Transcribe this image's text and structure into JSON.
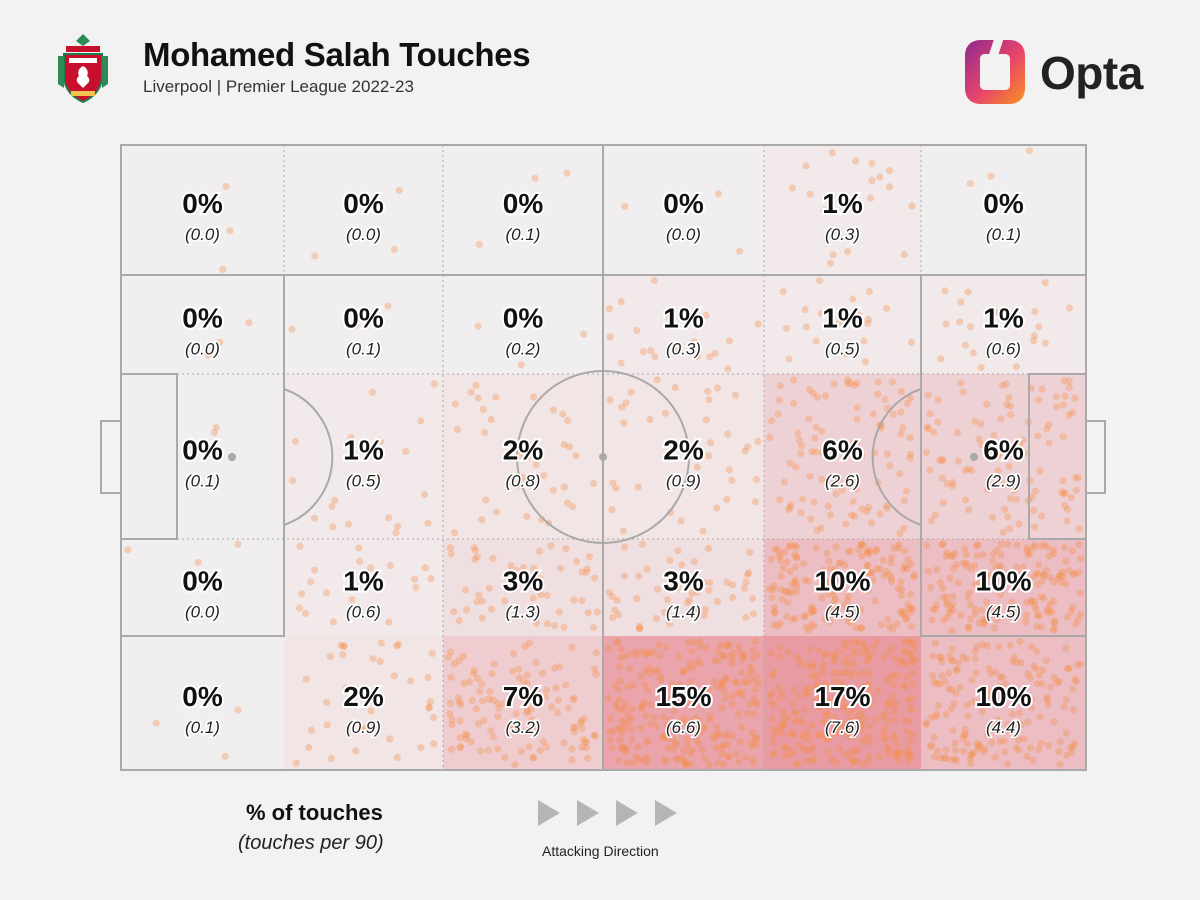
{
  "header": {
    "title": "Mohamed Salah Touches",
    "subtitle": "Liverpool | Premier League 2022-23",
    "brand": "Opta",
    "crest_icon": "liverpool-crest-icon",
    "brand_icon": "opta-logo-icon"
  },
  "colors": {
    "background": "#f2f2f2",
    "pitch_lines": "#a9a9a9",
    "heat": "#e04a5a",
    "dots": "#f4904a",
    "brand_orange": "#f7931e",
    "brand_purple": "#8e2a8f"
  },
  "legend": {
    "title": "% of touches",
    "subtitle": "(touches per 90)",
    "direction_label": "Attacking Direction",
    "direction_icon": "arrow-right-icon"
  },
  "chart_data": {
    "type": "heatmap",
    "title": "Mohamed Salah Touches",
    "subtitle": "Liverpool | Premier League 2022-23",
    "attacking_direction": "left-to-right",
    "rows": [
      [
        {
          "pct": "0%",
          "per90": "(0.0)",
          "value": 0
        },
        {
          "pct": "0%",
          "per90": "(0.0)",
          "value": 0
        },
        {
          "pct": "0%",
          "per90": "(0.1)",
          "value": 0
        },
        {
          "pct": "0%",
          "per90": "(0.0)",
          "value": 0
        },
        {
          "pct": "1%",
          "per90": "(0.3)",
          "value": 1
        },
        {
          "pct": "0%",
          "per90": "(0.1)",
          "value": 0
        }
      ],
      [
        {
          "pct": "0%",
          "per90": "(0.0)",
          "value": 0
        },
        {
          "pct": "0%",
          "per90": "(0.1)",
          "value": 0
        },
        {
          "pct": "0%",
          "per90": "(0.2)",
          "value": 0
        },
        {
          "pct": "1%",
          "per90": "(0.3)",
          "value": 1
        },
        {
          "pct": "1%",
          "per90": "(0.5)",
          "value": 1
        },
        {
          "pct": "1%",
          "per90": "(0.6)",
          "value": 1
        }
      ],
      [
        {
          "pct": "0%",
          "per90": "(0.1)",
          "value": 0
        },
        {
          "pct": "1%",
          "per90": "(0.5)",
          "value": 1
        },
        {
          "pct": "2%",
          "per90": "(0.8)",
          "value": 2
        },
        {
          "pct": "2%",
          "per90": "(0.9)",
          "value": 2
        },
        {
          "pct": "6%",
          "per90": "(2.6)",
          "value": 6
        },
        {
          "pct": "6%",
          "per90": "(2.9)",
          "value": 6
        }
      ],
      [
        {
          "pct": "0%",
          "per90": "(0.0)",
          "value": 0
        },
        {
          "pct": "1%",
          "per90": "(0.6)",
          "value": 1
        },
        {
          "pct": "3%",
          "per90": "(1.3)",
          "value": 3
        },
        {
          "pct": "3%",
          "per90": "(1.4)",
          "value": 3
        },
        {
          "pct": "10%",
          "per90": "(4.5)",
          "value": 10
        },
        {
          "pct": "10%",
          "per90": "(4.5)",
          "value": 10
        }
      ],
      [
        {
          "pct": "0%",
          "per90": "(0.1)",
          "value": 0
        },
        {
          "pct": "2%",
          "per90": "(0.9)",
          "value": 2
        },
        {
          "pct": "7%",
          "per90": "(3.2)",
          "value": 7
        },
        {
          "pct": "15%",
          "per90": "(6.6)",
          "value": 15
        },
        {
          "pct": "17%",
          "per90": "(7.6)",
          "value": 17
        },
        {
          "pct": "10%",
          "per90": "(4.4)",
          "value": 10
        }
      ]
    ]
  }
}
